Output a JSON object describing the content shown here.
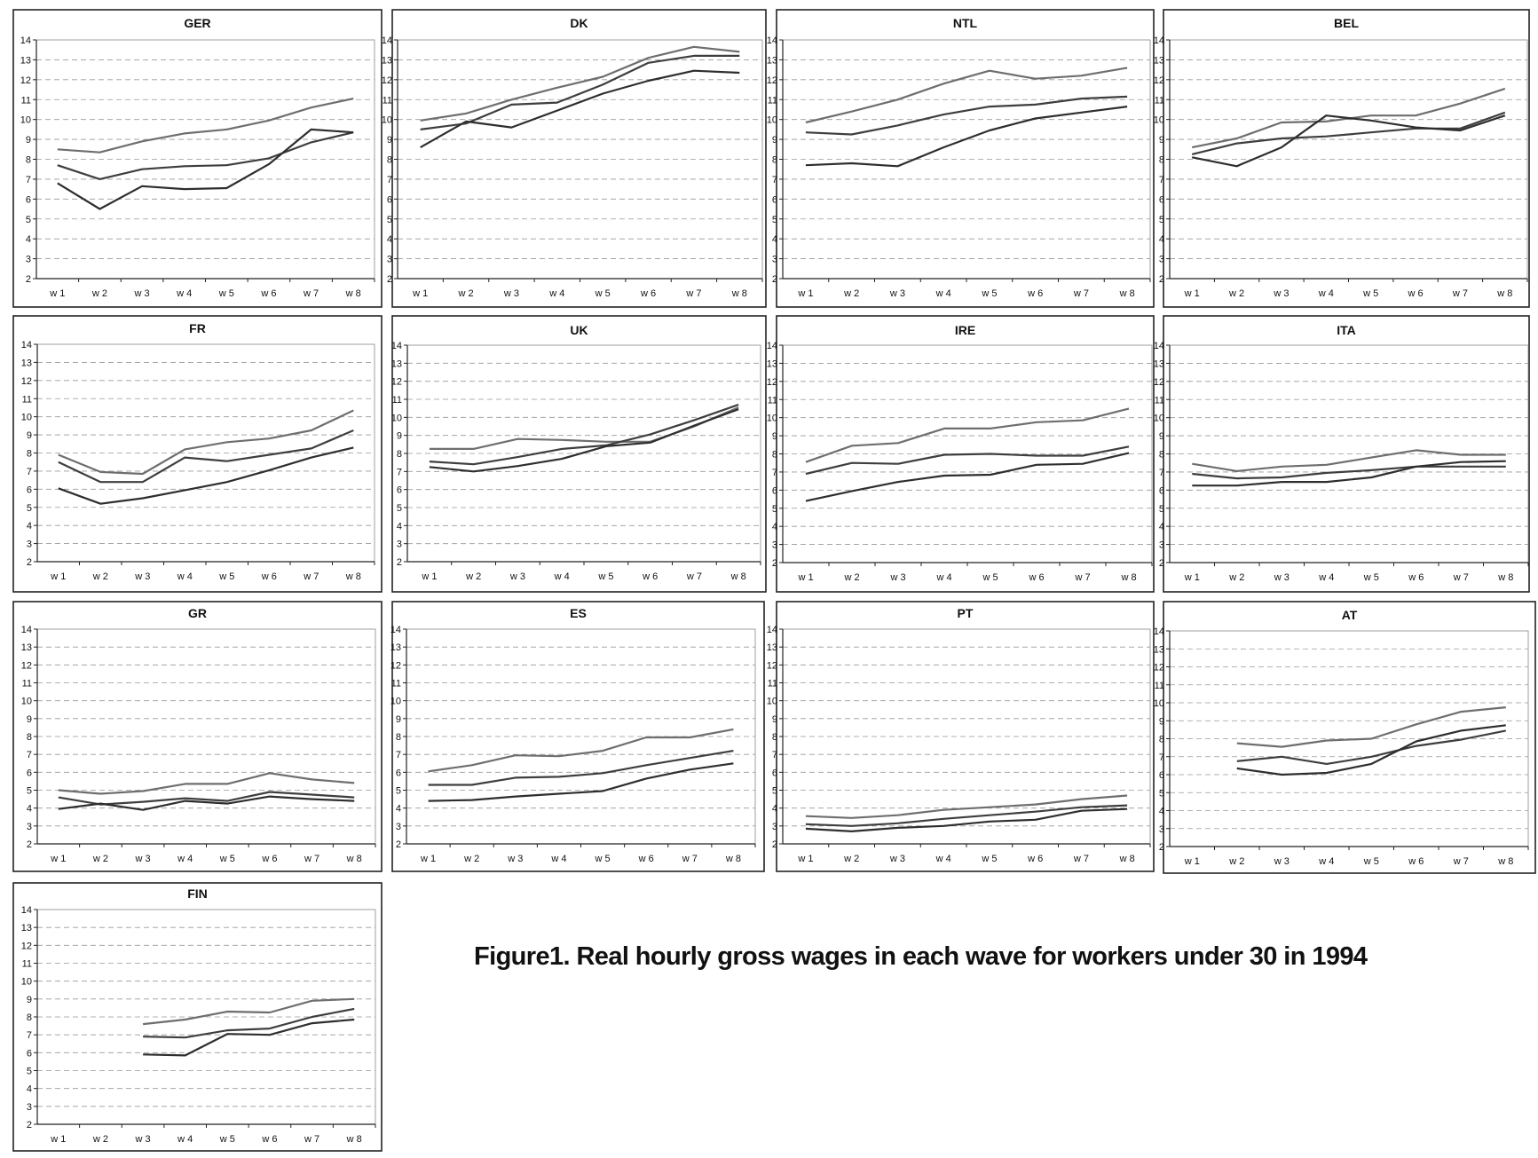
{
  "figure": {
    "caption": "Figure1. Real hourly gross wages in each wave for workers under 30 in 1994"
  },
  "colors": {
    "axis": "#222222",
    "grid": "#999999",
    "series": [
      "#6e6e6e",
      "#3e3e3e",
      "#2e2e2e"
    ]
  },
  "chart_data": [
    {
      "type": "line",
      "title": "GER",
      "categories": [
        "w 1",
        "w 2",
        "w 3",
        "w 4",
        "w 5",
        "w 6",
        "w 7",
        "w 8"
      ],
      "ylim": [
        2,
        14
      ],
      "yticks": [
        2,
        3,
        4,
        5,
        6,
        7,
        8,
        9,
        10,
        11,
        12,
        13,
        14
      ],
      "grid": "horizontal-dashed",
      "series": [
        {
          "values": [
            8.5,
            8.35,
            8.9,
            9.3,
            9.5,
            9.95,
            10.6,
            11.05
          ]
        },
        {
          "values": [
            7.7,
            7.0,
            7.5,
            7.65,
            7.7,
            8.05,
            8.85,
            9.35
          ]
        },
        {
          "values": [
            6.8,
            5.5,
            6.65,
            6.5,
            6.55,
            7.75,
            9.5,
            9.35
          ]
        }
      ]
    },
    {
      "type": "line",
      "title": "DK",
      "categories": [
        "w 1",
        "w 2",
        "w 3",
        "w 4",
        "w 5",
        "w 6",
        "w 7",
        "w 8"
      ],
      "ylim": [
        2,
        14
      ],
      "yticks": [
        2,
        3,
        4,
        5,
        6,
        7,
        8,
        9,
        10,
        11,
        12,
        13,
        14
      ],
      "grid": "horizontal-dashed",
      "series": [
        {
          "values": [
            9.95,
            10.3,
            11.0,
            11.6,
            12.15,
            13.1,
            13.65,
            13.4
          ]
        },
        {
          "values": [
            9.5,
            9.8,
            10.75,
            10.85,
            11.75,
            12.85,
            13.2,
            13.2
          ]
        },
        {
          "values": [
            8.6,
            9.9,
            9.6,
            10.45,
            11.3,
            11.95,
            12.45,
            12.35
          ]
        }
      ]
    },
    {
      "type": "line",
      "title": "NTL",
      "categories": [
        "w 1",
        "w 2",
        "w 3",
        "w 4",
        "w 5",
        "w 6",
        "w 7",
        "w 8"
      ],
      "ylim": [
        2,
        14
      ],
      "yticks": [
        2,
        3,
        4,
        5,
        6,
        7,
        8,
        9,
        10,
        11,
        12,
        13,
        14
      ],
      "grid": "horizontal-dashed",
      "series": [
        {
          "values": [
            9.85,
            10.4,
            11.0,
            11.8,
            12.45,
            12.05,
            12.2,
            12.6
          ]
        },
        {
          "values": [
            9.35,
            9.25,
            9.7,
            10.25,
            10.65,
            10.75,
            11.05,
            11.15
          ]
        },
        {
          "values": [
            7.7,
            7.8,
            7.65,
            8.6,
            9.45,
            10.05,
            10.35,
            10.65
          ]
        }
      ]
    },
    {
      "type": "line",
      "title": "BEL",
      "categories": [
        "w 1",
        "w 2",
        "w 3",
        "w 4",
        "w 5",
        "w 6",
        "w 7",
        "w 8"
      ],
      "ylim": [
        2,
        14
      ],
      "yticks": [
        2,
        3,
        4,
        5,
        6,
        7,
        8,
        9,
        10,
        11,
        12,
        13,
        14
      ],
      "grid": "horizontal-dashed",
      "series": [
        {
          "values": [
            8.6,
            9.05,
            9.85,
            9.9,
            10.2,
            10.2,
            10.8,
            11.55
          ]
        },
        {
          "values": [
            8.25,
            8.8,
            9.05,
            9.15,
            9.35,
            9.55,
            9.55,
            10.35
          ]
        },
        {
          "values": [
            8.1,
            7.65,
            8.6,
            10.2,
            9.95,
            9.6,
            9.45,
            10.2
          ]
        }
      ]
    },
    {
      "type": "line",
      "title": "FR",
      "categories": [
        "w 1",
        "w 2",
        "w 3",
        "w 4",
        "w 5",
        "w 6",
        "w 7",
        "w 8"
      ],
      "ylim": [
        2,
        14
      ],
      "yticks": [
        2,
        3,
        4,
        5,
        6,
        7,
        8,
        9,
        10,
        11,
        12,
        13,
        14
      ],
      "grid": "horizontal-dashed",
      "series": [
        {
          "values": [
            7.9,
            6.95,
            6.85,
            8.2,
            8.6,
            8.8,
            9.25,
            10.35
          ]
        },
        {
          "values": [
            7.5,
            6.4,
            6.4,
            7.75,
            7.55,
            7.9,
            8.25,
            9.25
          ]
        },
        {
          "values": [
            6.05,
            5.2,
            5.5,
            5.95,
            6.4,
            7.05,
            7.75,
            8.3
          ]
        }
      ]
    },
    {
      "type": "line",
      "title": "UK",
      "categories": [
        "w 1",
        "w 2",
        "w 3",
        "w 4",
        "w 5",
        "w 6",
        "w 7",
        "w 8"
      ],
      "ylim": [
        2,
        14
      ],
      "yticks": [
        2,
        3,
        4,
        5,
        6,
        7,
        8,
        9,
        10,
        11,
        12,
        13,
        14
      ],
      "grid": "horizontal-dashed",
      "series": [
        {
          "values": [
            8.25,
            8.25,
            8.8,
            8.75,
            8.65,
            8.65,
            9.5,
            10.55
          ]
        },
        {
          "values": [
            7.55,
            7.4,
            7.8,
            8.25,
            8.45,
            9.05,
            9.85,
            10.7
          ]
        },
        {
          "values": [
            7.25,
            7.0,
            7.3,
            7.7,
            8.4,
            8.6,
            9.55,
            10.45
          ]
        }
      ]
    },
    {
      "type": "line",
      "title": "IRE",
      "categories": [
        "w 1",
        "w 2",
        "w 3",
        "w 4",
        "w 5",
        "w 6",
        "w 7",
        "w 8"
      ],
      "ylim": [
        2,
        14
      ],
      "yticks": [
        2,
        3,
        4,
        5,
        6,
        7,
        8,
        9,
        10,
        11,
        12,
        13,
        14
      ],
      "grid": "horizontal-dashed",
      "series": [
        {
          "values": [
            7.55,
            8.45,
            8.6,
            9.4,
            9.4,
            9.75,
            9.85,
            10.5
          ]
        },
        {
          "values": [
            6.9,
            7.5,
            7.45,
            7.95,
            8.0,
            7.9,
            7.9,
            8.4
          ]
        },
        {
          "values": [
            5.4,
            5.95,
            6.45,
            6.8,
            6.85,
            7.4,
            7.45,
            8.05
          ]
        }
      ]
    },
    {
      "type": "line",
      "title": "ITA",
      "categories": [
        "w 1",
        "w 2",
        "w 3",
        "w 4",
        "w 5",
        "w 6",
        "w 7",
        "w 8"
      ],
      "ylim": [
        2,
        14
      ],
      "yticks": [
        2,
        3,
        4,
        5,
        6,
        7,
        8,
        9,
        10,
        11,
        12,
        13,
        14
      ],
      "grid": "horizontal-dashed",
      "series": [
        {
          "values": [
            7.45,
            7.05,
            7.3,
            7.4,
            7.8,
            8.2,
            7.95,
            7.95
          ]
        },
        {
          "values": [
            6.9,
            6.65,
            6.7,
            6.95,
            7.1,
            7.3,
            7.3,
            7.3
          ]
        },
        {
          "values": [
            6.25,
            6.25,
            6.45,
            6.45,
            6.7,
            7.3,
            7.55,
            7.6
          ]
        }
      ]
    },
    {
      "type": "line",
      "title": "GR",
      "categories": [
        "w 1",
        "w 2",
        "w 3",
        "w 4",
        "w 5",
        "w 6",
        "w 7",
        "w 8"
      ],
      "ylim": [
        2,
        14
      ],
      "yticks": [
        2,
        3,
        4,
        5,
        6,
        7,
        8,
        9,
        10,
        11,
        12,
        13,
        14
      ],
      "grid": "horizontal-dashed",
      "series": [
        {
          "values": [
            5.0,
            4.8,
            4.95,
            5.35,
            5.35,
            5.95,
            5.6,
            5.4
          ]
        },
        {
          "values": [
            4.6,
            4.2,
            4.35,
            4.55,
            4.4,
            4.9,
            4.75,
            4.6
          ]
        },
        {
          "values": [
            3.95,
            4.25,
            3.9,
            4.4,
            4.25,
            4.65,
            4.5,
            4.4
          ]
        }
      ]
    },
    {
      "type": "line",
      "title": "ES",
      "categories": [
        "w 1",
        "w 2",
        "w 3",
        "w 4",
        "w 5",
        "w 6",
        "w 7",
        "w 8"
      ],
      "ylim": [
        2,
        14
      ],
      "yticks": [
        2,
        3,
        4,
        5,
        6,
        7,
        8,
        9,
        10,
        11,
        12,
        13,
        14
      ],
      "grid": "horizontal-dashed",
      "series": [
        {
          "values": [
            6.05,
            6.4,
            6.95,
            6.9,
            7.2,
            7.95,
            7.95,
            8.4
          ]
        },
        {
          "values": [
            5.3,
            5.3,
            5.7,
            5.75,
            5.95,
            6.4,
            6.8,
            7.2
          ]
        },
        {
          "values": [
            4.4,
            4.45,
            4.65,
            4.8,
            4.95,
            5.65,
            6.15,
            6.5
          ]
        }
      ]
    },
    {
      "type": "line",
      "title": "PT",
      "categories": [
        "w 1",
        "w 2",
        "w 3",
        "w 4",
        "w 5",
        "w 6",
        "w 7",
        "w 8"
      ],
      "ylim": [
        2,
        14
      ],
      "yticks": [
        2,
        3,
        4,
        5,
        6,
        7,
        8,
        9,
        10,
        11,
        12,
        13,
        14
      ],
      "grid": "horizontal-dashed",
      "series": [
        {
          "values": [
            3.55,
            3.45,
            3.6,
            3.9,
            4.05,
            4.2,
            4.5,
            4.7
          ]
        },
        {
          "values": [
            3.1,
            3.0,
            3.15,
            3.4,
            3.6,
            3.8,
            4.05,
            4.15
          ]
        },
        {
          "values": [
            2.85,
            2.7,
            2.9,
            3.0,
            3.25,
            3.35,
            3.85,
            3.95
          ]
        }
      ]
    },
    {
      "type": "line",
      "title": "AT",
      "categories": [
        "w 1",
        "w 2",
        "w 3",
        "w 4",
        "w 5",
        "w 6",
        "w 7",
        "w 8"
      ],
      "ylim": [
        2,
        14
      ],
      "yticks": [
        2,
        3,
        4,
        5,
        6,
        7,
        8,
        9,
        10,
        11,
        12,
        13,
        14
      ],
      "grid": "horizontal-dashed",
      "series": [
        {
          "values": [
            null,
            7.75,
            7.55,
            7.9,
            8.0,
            8.8,
            9.5,
            9.75
          ]
        },
        {
          "values": [
            null,
            6.75,
            7.0,
            6.6,
            7.0,
            7.6,
            7.95,
            8.45
          ]
        },
        {
          "values": [
            null,
            6.35,
            6.0,
            6.1,
            6.6,
            7.85,
            8.45,
            8.75
          ]
        }
      ]
    },
    {
      "type": "line",
      "title": "FIN",
      "categories": [
        "w 1",
        "w 2",
        "w 3",
        "w 4",
        "w 5",
        "w 6",
        "w 7",
        "w 8"
      ],
      "ylim": [
        2,
        14
      ],
      "yticks": [
        2,
        3,
        4,
        5,
        6,
        7,
        8,
        9,
        10,
        11,
        12,
        13,
        14
      ],
      "grid": "horizontal-dashed",
      "series": [
        {
          "values": [
            null,
            null,
            7.6,
            7.85,
            8.3,
            8.25,
            8.9,
            9.0
          ]
        },
        {
          "values": [
            null,
            null,
            6.9,
            6.85,
            7.25,
            7.35,
            8.0,
            8.45
          ]
        },
        {
          "values": [
            null,
            null,
            5.9,
            5.85,
            7.05,
            7.0,
            7.65,
            7.85
          ]
        }
      ]
    }
  ]
}
